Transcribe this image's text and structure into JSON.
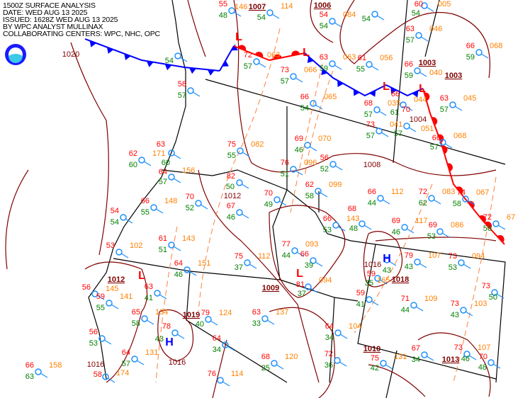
{
  "header": {
    "title": "1500Z SURFACE ANALYSIS",
    "date": "DATE: WED AUG 13 2025",
    "issued": "ISSUED: 1628Z WED AUG 13 2025",
    "analyst": "BY WPC ANALYST MULLINAX",
    "centers": "COLLABORATING CENTERS: WPC, NHC, OPC"
  },
  "logo": {
    "name": "noaa-logo",
    "text": "NOAA"
  },
  "colors": {
    "temperature": "#ff0000",
    "dewpoint": "#008000",
    "pressure": "#ff8000",
    "isobar": "#800000",
    "cold_front": "#0000ff",
    "warm_front": "#ff0000",
    "station": "#1e90ff",
    "border": "#000000",
    "trough": "#ff8040"
  },
  "stations": [
    {
      "temp": "55",
      "dew": "48",
      "pres": "146"
    },
    {
      "temp": "",
      "dew": "54",
      "pres": "114"
    },
    {
      "temp": "54",
      "dew": "54",
      "pres": "084"
    },
    {
      "temp": "",
      "dew": "54",
      "pres": ""
    },
    {
      "temp": "60",
      "dew": "54",
      "pres": "005"
    },
    {
      "temp": "63",
      "dew": "57",
      "pres": "046"
    },
    {
      "temp": "66",
      "dew": "59",
      "pres": "068"
    },
    {
      "temp": "",
      "dew": "54",
      "pres": ""
    },
    {
      "temp": "72",
      "dew": "57",
      "pres": "063"
    },
    {
      "temp": "73",
      "dew": "57",
      "pres": "066"
    },
    {
      "temp": "63",
      "dew": "59",
      "pres": "063"
    },
    {
      "temp": "61",
      "dew": "55",
      "pres": "056"
    },
    {
      "temp": "66",
      "dew": "59",
      "pres": "040"
    },
    {
      "temp": "58",
      "dew": "57",
      "pres": ""
    },
    {
      "temp": "66",
      "dew": "54",
      "pres": "065"
    },
    {
      "temp": "68",
      "dew": "57",
      "pres": "035"
    },
    {
      "temp": "66",
      "dew": "61",
      "pres": "044"
    },
    {
      "temp": "63",
      "dew": "57",
      "pres": "045"
    },
    {
      "temp": "73",
      "dew": "57",
      "pres": "041"
    },
    {
      "temp": "70",
      "dew": "57",
      "pres": "051"
    },
    {
      "temp": "66",
      "dew": "57",
      "pres": "068"
    },
    {
      "temp": "69",
      "dew": "46",
      "pres": "070"
    },
    {
      "temp": "75",
      "dew": "55",
      "pres": "082"
    },
    {
      "temp": "76",
      "dew": "51",
      "pres": "096"
    },
    {
      "temp": "56",
      "dew": "52",
      "pres": ""
    },
    {
      "temp": "62",
      "dew": "60",
      "pres": "171"
    },
    {
      "temp": "63",
      "dew": "60",
      "pres": ""
    },
    {
      "temp": "64",
      "dew": "57",
      "pres": "156"
    },
    {
      "temp": "66",
      "dew": "55",
      "pres": "148"
    },
    {
      "temp": "70",
      "dew": "52",
      "pres": ""
    },
    {
      "temp": "82",
      "dew": "50",
      "pres": ""
    },
    {
      "temp": "67",
      "dew": "46",
      "pres": ""
    },
    {
      "temp": "70",
      "dew": "49",
      "pres": ""
    },
    {
      "temp": "62",
      "dew": "58",
      "pres": "099"
    },
    {
      "temp": "66",
      "dew": "44",
      "pres": "112"
    },
    {
      "temp": "72",
      "dew": "62",
      "pres": "083"
    },
    {
      "temp": "74",
      "dew": "58",
      "pres": "067"
    },
    {
      "temp": "72",
      "dew": "56",
      "pres": "67"
    },
    {
      "temp": "54",
      "dew": "54",
      "pres": ""
    },
    {
      "temp": "66",
      "dew": "53",
      "pres": "143"
    },
    {
      "temp": "68",
      "dew": "48",
      "pres": ""
    },
    {
      "temp": "69",
      "dew": "46",
      "pres": "117"
    },
    {
      "temp": "69",
      "dew": "53",
      "pres": "086"
    },
    {
      "temp": "61",
      "dew": "51",
      "pres": "143"
    },
    {
      "temp": "53",
      "dew": "",
      "pres": "102"
    },
    {
      "temp": "77",
      "dew": "44",
      "pres": "093"
    },
    {
      "temp": "66",
      "dew": "39",
      "pres": ""
    },
    {
      "temp": "75",
      "dew": "37",
      "pres": "112"
    },
    {
      "temp": "64",
      "dew": "46",
      "pres": "151"
    },
    {
      "temp": "79",
      "dew": "43",
      "pres": "107"
    },
    {
      "temp": "73",
      "dew": "53",
      "pres": "094"
    },
    {
      "temp": "",
      "dew": "43",
      "pres": ""
    },
    {
      "temp": "56",
      "dew": "",
      "pres": "145"
    },
    {
      "temp": "59",
      "dew": "55",
      "pres": "141"
    },
    {
      "temp": "63",
      "dew": "41",
      "pres": ""
    },
    {
      "temp": "81",
      "dew": "37",
      "pres": "094"
    },
    {
      "temp": "59",
      "dew": "35",
      "pres": "165"
    },
    {
      "temp": "59",
      "dew": "41",
      "pres": ""
    },
    {
      "temp": "71",
      "dew": "44",
      "pres": "109"
    },
    {
      "temp": "73",
      "dew": "43",
      "pres": "103"
    },
    {
      "temp": "73",
      "dew": "50",
      "pres": ""
    },
    {
      "temp": "65",
      "dew": "58",
      "pres": "134"
    },
    {
      "temp": "79",
      "dew": "40",
      "pres": "124"
    },
    {
      "temp": "63",
      "dew": "33",
      "pres": "137"
    },
    {
      "temp": "56",
      "dew": "53",
      "pres": ""
    },
    {
      "temp": "78",
      "dew": "43",
      "pres": ""
    },
    {
      "temp": "64",
      "dew": "34",
      "pres": ""
    },
    {
      "temp": "64",
      "dew": "34",
      "pres": "104"
    },
    {
      "temp": "64",
      "dew": "57",
      "pres": "131"
    },
    {
      "temp": "68",
      "dew": "25",
      "pres": "120"
    },
    {
      "temp": "72",
      "dew": "36",
      "pres": ""
    },
    {
      "temp": "75",
      "dew": "42",
      "pres": "131"
    },
    {
      "temp": "67",
      "dew": "34",
      "pres": ""
    },
    {
      "temp": "73",
      "dew": "46",
      "pres": "107"
    },
    {
      "temp": "70",
      "dew": "48",
      "pres": ""
    },
    {
      "temp": "66",
      "dew": "63",
      "pres": "158"
    },
    {
      "temp": "58",
      "dew": "",
      "pres": "174"
    },
    {
      "temp": "76",
      "dew": "",
      "pres": "114"
    }
  ],
  "isobar_labels": [
    "1020",
    "1007",
    "1006",
    "1003",
    "1003",
    "1004",
    "1008",
    "1012",
    "1012",
    "1009",
    "1018",
    "1016",
    "1019",
    "1016",
    "1016",
    "1010",
    "1013"
  ],
  "pressure_centers": [
    {
      "type": "L"
    },
    {
      "type": "L"
    },
    {
      "type": "L"
    },
    {
      "type": "L"
    },
    {
      "type": "L"
    },
    {
      "type": "L"
    },
    {
      "type": "H"
    },
    {
      "type": "H"
    }
  ]
}
